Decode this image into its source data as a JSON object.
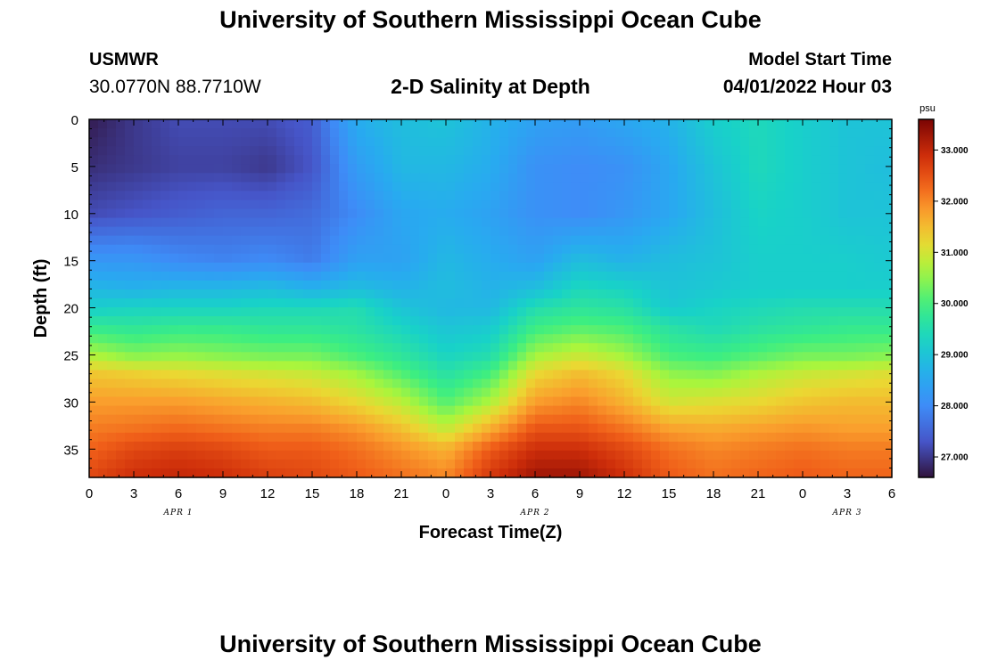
{
  "header": {
    "title": "University of Southern Mississippi Ocean Cube",
    "station": "USMWR",
    "coords": "30.0770N  88.7710W",
    "subtitle": "2-D Salinity at Depth",
    "model_start_label": "Model Start Time",
    "model_start_value": "04/01/2022 Hour 03"
  },
  "footer": {
    "title": "University of Southern Mississippi Ocean Cube"
  },
  "chart_data": {
    "type": "heatmap",
    "title": "2-D Salinity at Depth",
    "xlabel": "Forecast Time(Z)",
    "ylabel": "Depth (ft)",
    "x_ticks": [
      "0",
      "3",
      "6",
      "9",
      "12",
      "15",
      "18",
      "21",
      "0",
      "3",
      "6",
      "9",
      "12",
      "15",
      "18",
      "21",
      "0",
      "3",
      "6"
    ],
    "x_day_labels": [
      {
        "label": "APR 1",
        "hour": 6
      },
      {
        "label": "APR 2",
        "hour": 30
      },
      {
        "label": "APR 3",
        "hour": 51
      }
    ],
    "x_range_hours": [
      0,
      54
    ],
    "y_ticks": [
      0,
      5,
      10,
      15,
      20,
      25,
      30,
      35
    ],
    "ylim": [
      0,
      38
    ],
    "colorbar": {
      "unit": "psu",
      "ticks": [
        "27.000",
        "28.000",
        "29.000",
        "30.000",
        "31.000",
        "32.000",
        "33.000"
      ],
      "range": [
        26.6,
        33.6
      ]
    },
    "salinity_psu": {
      "hours": [
        0,
        3,
        6,
        9,
        12,
        15,
        18,
        21,
        24,
        27,
        30,
        33,
        36,
        39,
        42,
        45,
        48,
        51,
        54
      ],
      "depths": [
        0,
        5,
        10,
        15,
        18,
        20,
        22,
        25,
        27,
        30,
        33,
        35,
        38
      ],
      "values": [
        [
          26.7,
          27.0,
          27.2,
          27.2,
          27.2,
          27.4,
          28.6,
          28.9,
          29.0,
          28.7,
          28.4,
          28.3,
          28.5,
          28.7,
          29.2,
          29.4,
          29.2,
          29.0,
          29.0
        ],
        [
          26.9,
          27.0,
          27.1,
          27.1,
          27.0,
          27.3,
          28.3,
          28.8,
          28.8,
          28.6,
          28.1,
          28.0,
          28.1,
          28.5,
          29.0,
          29.4,
          29.2,
          29.0,
          28.9
        ],
        [
          27.2,
          27.3,
          27.4,
          27.5,
          27.5,
          27.6,
          28.0,
          28.5,
          28.6,
          28.4,
          28.1,
          28.0,
          28.2,
          28.5,
          28.9,
          29.3,
          29.2,
          29.0,
          29.0
        ],
        [
          28.2,
          28.2,
          28.0,
          27.9,
          28.0,
          27.8,
          28.4,
          28.4,
          28.8,
          28.6,
          28.4,
          28.9,
          28.7,
          28.9,
          29.0,
          29.2,
          29.2,
          29.2,
          29.1
        ],
        [
          28.8,
          28.7,
          28.8,
          28.8,
          28.9,
          28.7,
          28.9,
          28.7,
          28.9,
          28.7,
          28.9,
          29.4,
          29.3,
          29.0,
          29.1,
          29.2,
          29.2,
          29.2,
          29.2
        ],
        [
          29.2,
          29.3,
          29.3,
          29.3,
          29.4,
          29.4,
          29.5,
          29.0,
          28.8,
          28.8,
          29.5,
          29.7,
          29.6,
          29.1,
          29.3,
          29.4,
          29.5,
          29.5,
          29.5
        ],
        [
          29.8,
          29.7,
          29.8,
          29.8,
          29.7,
          29.7,
          29.6,
          29.3,
          29.0,
          29.1,
          29.9,
          30.1,
          30.0,
          29.6,
          29.4,
          29.6,
          29.7,
          29.8,
          29.8
        ],
        [
          30.7,
          30.4,
          30.5,
          30.4,
          30.3,
          30.3,
          30.0,
          29.7,
          29.3,
          29.5,
          30.6,
          30.9,
          30.6,
          30.0,
          29.9,
          30.1,
          30.3,
          30.3,
          30.4
        ],
        [
          31.4,
          31.3,
          31.2,
          31.1,
          31.0,
          30.9,
          30.6,
          30.1,
          29.6,
          30.0,
          31.2,
          31.5,
          31.2,
          30.5,
          30.4,
          30.7,
          30.9,
          31.0,
          31.1
        ],
        [
          31.8,
          31.8,
          31.8,
          31.7,
          31.6,
          31.5,
          31.2,
          30.8,
          30.1,
          30.7,
          31.8,
          32.0,
          31.6,
          31.0,
          31.1,
          31.2,
          31.4,
          31.5,
          31.5
        ],
        [
          32.1,
          32.2,
          32.3,
          32.2,
          32.1,
          32.1,
          31.9,
          31.5,
          30.9,
          31.7,
          32.5,
          32.5,
          32.2,
          31.8,
          31.7,
          31.8,
          31.9,
          31.8,
          31.8
        ],
        [
          32.3,
          32.6,
          32.7,
          32.6,
          32.4,
          32.4,
          32.2,
          31.9,
          31.6,
          32.4,
          32.9,
          32.9,
          32.6,
          32.2,
          32.0,
          32.1,
          32.2,
          32.1,
          32.1
        ],
        [
          32.6,
          32.9,
          33.0,
          32.9,
          32.7,
          32.6,
          32.4,
          32.2,
          32.0,
          32.8,
          33.3,
          33.3,
          32.9,
          32.4,
          32.2,
          32.3,
          32.4,
          32.3,
          32.3
        ]
      ]
    }
  }
}
